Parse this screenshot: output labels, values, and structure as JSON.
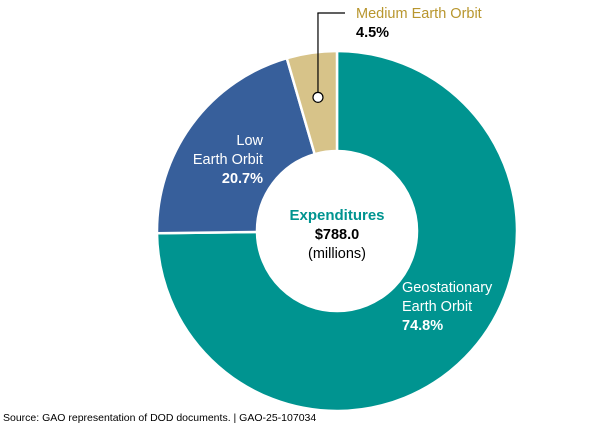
{
  "chart_data": {
    "type": "pie",
    "variant": "donut",
    "center_label": {
      "title": "Expenditures",
      "value": "$788.0",
      "unit": "(millions)"
    },
    "slices": [
      {
        "label_lines": [
          "Geostationary",
          "Earth Orbit"
        ],
        "value": 74.8,
        "value_label": "74.8%",
        "color": "#009490"
      },
      {
        "label_lines": [
          "Low",
          "Earth Orbit"
        ],
        "value": 20.7,
        "value_label": "20.7%",
        "color": "#375f9b"
      },
      {
        "label_lines": [
          "Medium Earth Orbit"
        ],
        "value": 4.5,
        "value_label": "4.5%",
        "color": "#d7c389",
        "label_color": "#b8962e",
        "callout": true
      }
    ],
    "center_title_color": "#009490"
  },
  "source": "Source: GAO representation of DOD documents.  |  GAO-25-107034"
}
